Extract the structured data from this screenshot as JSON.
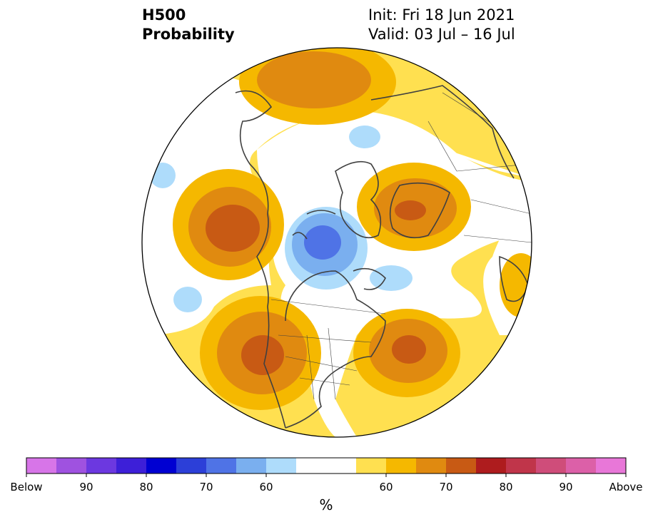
{
  "header": {
    "variable": "H500",
    "product": "Probability",
    "init": "Init: Fri 18 Jun 2021",
    "valid": "Valid: 03 Jul – 16 Jul"
  },
  "colorbar": {
    "colors": [
      "#d775e8",
      "#9f52e0",
      "#6c38e0",
      "#3d1fd8",
      "#0000d2",
      "#2c3fd8",
      "#4f73e6",
      "#7aafef",
      "#aedcfb",
      "#ffffff",
      "#ffffff",
      "#ffe050",
      "#f5b800",
      "#e08a10",
      "#c85a14",
      "#ae1c1e",
      "#c0354a",
      "#cf4d7a",
      "#dc60a8",
      "#e877d8"
    ],
    "tick_labels": [
      "Below",
      "90",
      "80",
      "70",
      "60",
      "60",
      "70",
      "80",
      "90",
      "Above"
    ],
    "tick_index": [
      0,
      2,
      4,
      6,
      8,
      12,
      14,
      16,
      18,
      20
    ],
    "unit": "%"
  },
  "map": {
    "projection": "north-polar-stereographic",
    "boundary_color": "#000000",
    "coastline_color": "#404040",
    "anomaly_regions": [
      {
        "name": "north-atlantic-europe-above",
        "category": "above",
        "peak": "70"
      },
      {
        "name": "north-pacific-above",
        "category": "above",
        "peak": "70"
      },
      {
        "name": "western-north-america-above",
        "category": "above",
        "peak": "70"
      },
      {
        "name": "eastern-canada-above",
        "category": "above",
        "peak": "70"
      },
      {
        "name": "siberia-above",
        "category": "above",
        "peak": "70"
      },
      {
        "name": "central-asia-above",
        "category": "above",
        "peak": "60"
      },
      {
        "name": "arctic-ocean-below",
        "category": "below",
        "peak": "70"
      },
      {
        "name": "europe-arctic-below",
        "category": "below",
        "peak": "60"
      },
      {
        "name": "hudson-bay-below",
        "category": "below",
        "peak": "60"
      },
      {
        "name": "pacific-small-below",
        "category": "below",
        "peak": "60"
      }
    ]
  }
}
